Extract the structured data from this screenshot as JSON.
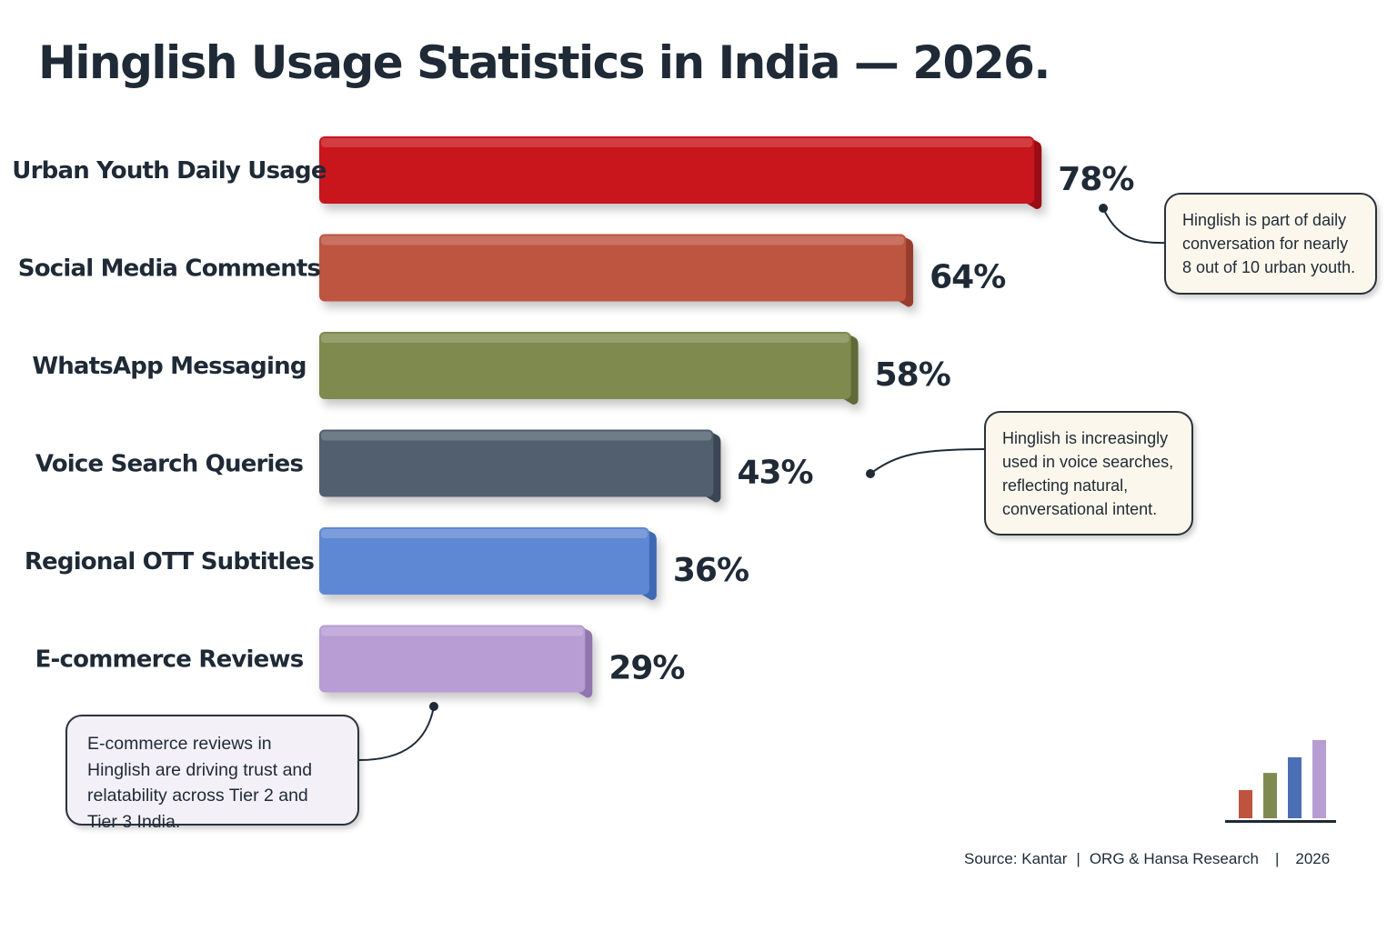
{
  "title": "Hinglish Usage Statistics in India — 2026.",
  "chart_data": {
    "type": "bar",
    "orientation": "horizontal",
    "categories": [
      "Urban Youth Daily Usage",
      "Social Media Comments",
      "WhatsApp Messaging",
      "Voice Search Queries",
      "Regional OTT Subtitles",
      "E-commerce Reviews"
    ],
    "values": [
      78,
      64,
      58,
      43,
      36,
      29
    ],
    "value_labels": [
      "78%",
      "64%",
      "58%",
      "43%",
      "36%",
      "29%"
    ],
    "unit": "%",
    "colors": [
      "#c8141a",
      "#be5440",
      "#7f8a50",
      "#515e6e",
      "#5e88d4",
      "#b79dd3"
    ],
    "side_colors": [
      "#9a0e12",
      "#963e2e",
      "#5f6a38",
      "#3a4452",
      "#3f69b3",
      "#8f76ad"
    ],
    "grid": false,
    "legend": "none"
  },
  "callouts": [
    {
      "text": "Hinglish is part of daily conversation for nearly 8 out of 10 urban youth.",
      "bar_index": 0
    },
    {
      "text": "Hinglish is increasingly used in voice searches, reflecting natural, conversational intent.",
      "bar_index": 3
    },
    {
      "text": "E-commerce reviews in Hinglish are driving trust and relatability across Tier 2 and Tier 3 India.",
      "bar_index": 5
    }
  ],
  "source": {
    "prefix": "Source: Kantar",
    "sep": "|",
    "org": "ORG & Hansa Research",
    "year": "2026"
  },
  "logo": {
    "icon": "bar-chart-icon",
    "bar_colors": [
      "#be5440",
      "#7f8a50",
      "#4a6fb3",
      "#b79dd3"
    ],
    "bar_levels": [
      0.36,
      0.58,
      0.78,
      1.0
    ]
  }
}
